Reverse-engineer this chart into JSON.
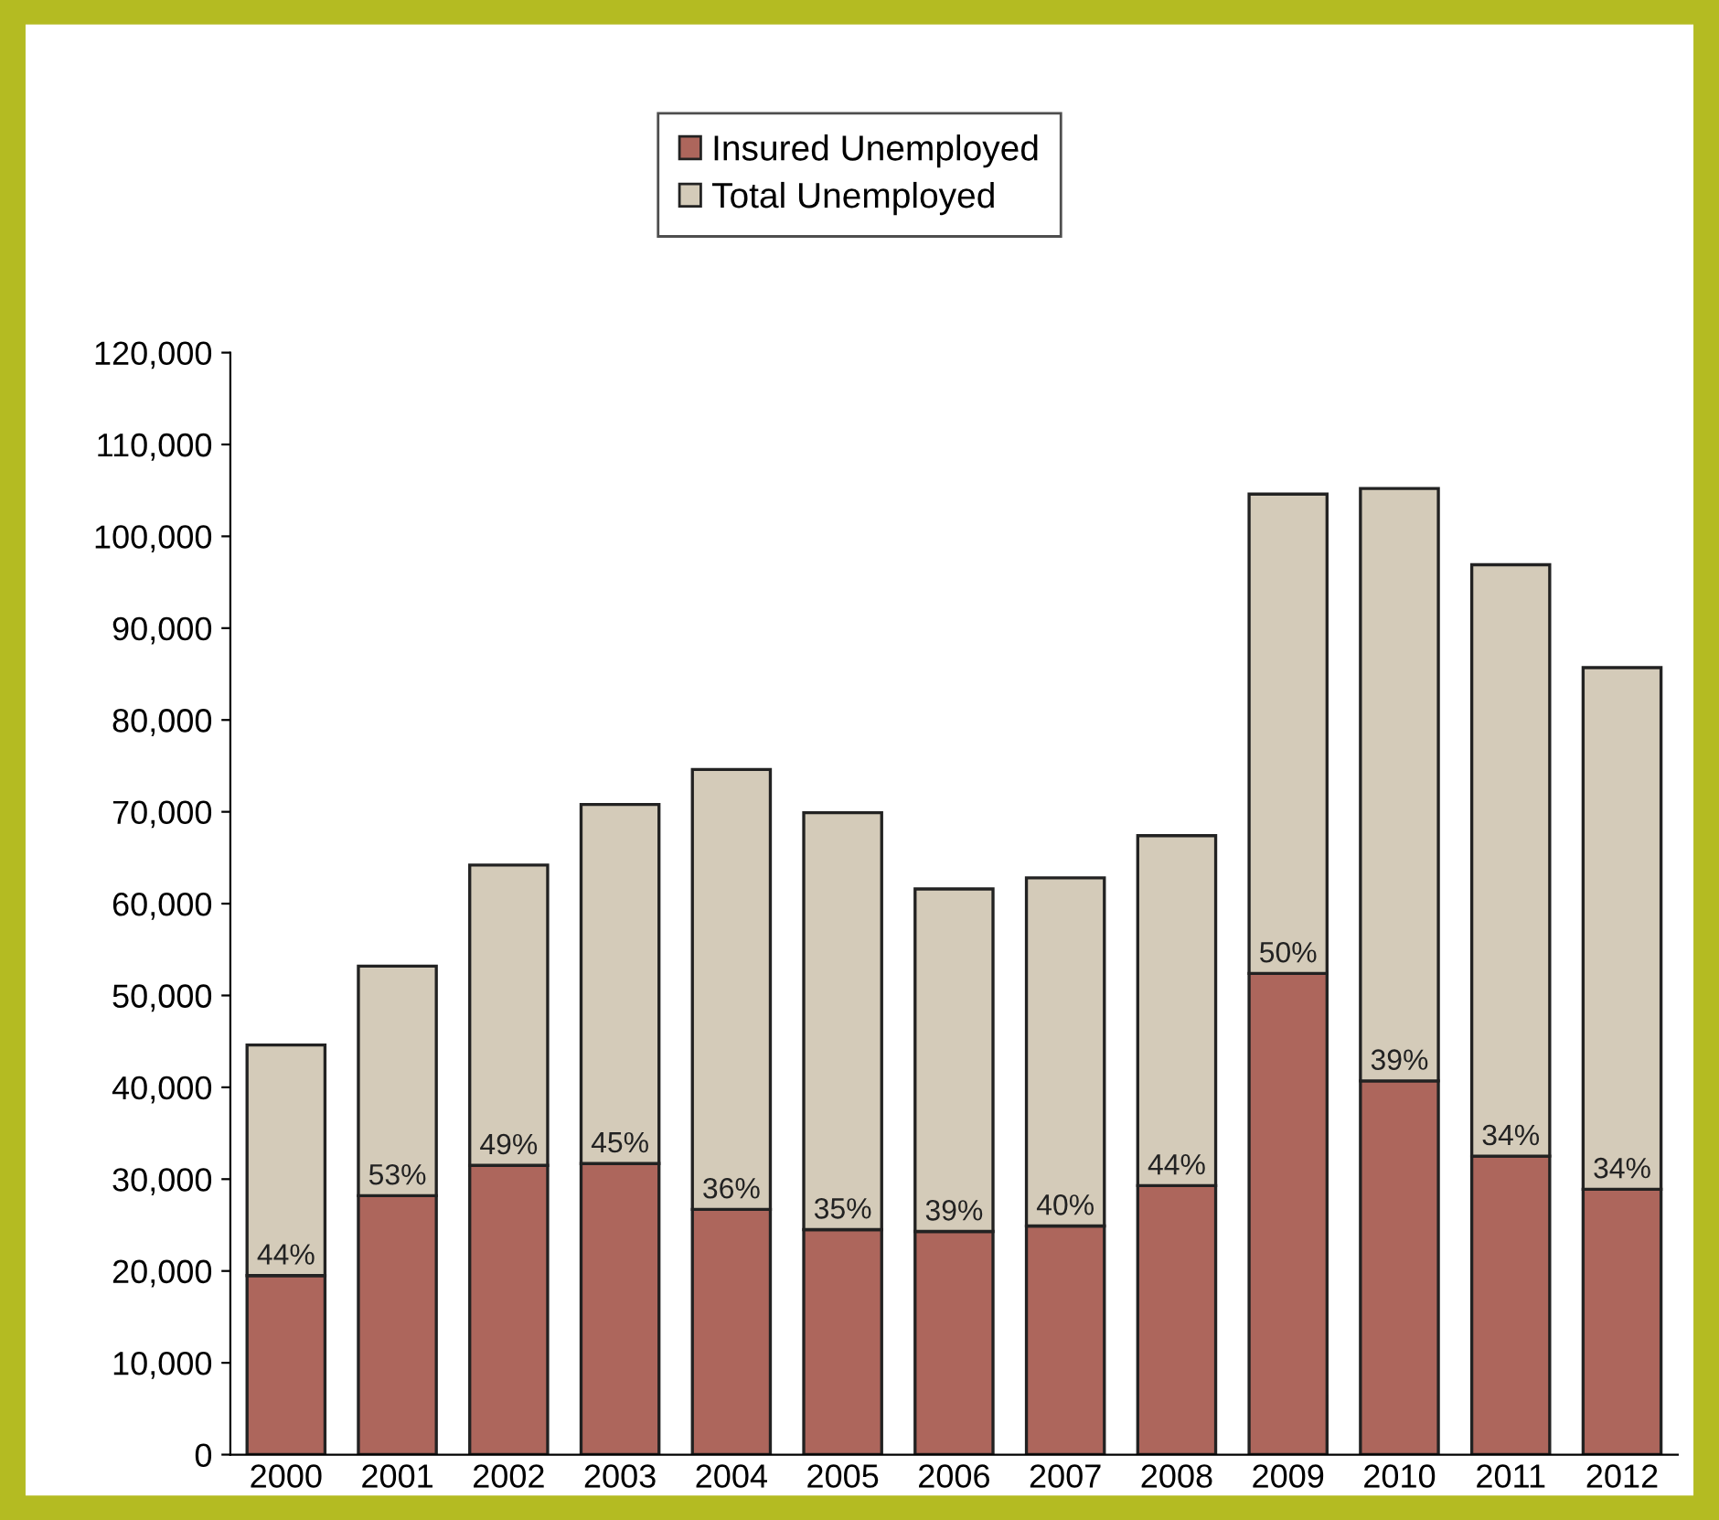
{
  "chart_data": {
    "type": "bar",
    "stacked": true,
    "categories": [
      "2000",
      "2001",
      "2002",
      "2003",
      "2004",
      "2005",
      "2006",
      "2007",
      "2008",
      "2009",
      "2010",
      "2011",
      "2012"
    ],
    "series": [
      {
        "name": "Insured Unemployed",
        "color": "#ad665c",
        "values": [
          19500,
          28200,
          31500,
          31700,
          26700,
          24500,
          24300,
          24900,
          29300,
          52400,
          40700,
          32500,
          28900
        ]
      },
      {
        "name": "Total Unemployed",
        "color": "#d4cbb9",
        "values": [
          25100,
          25000,
          32700,
          39100,
          47900,
          45400,
          37300,
          37900,
          38100,
          52200,
          64500,
          64400,
          56800
        ]
      }
    ],
    "ylim": [
      0,
      120000
    ],
    "yticks": [
      {
        "value": 0,
        "label": "0"
      },
      {
        "value": 10000,
        "label": "10,000"
      },
      {
        "value": 20000,
        "label": "20,000"
      },
      {
        "value": 30000,
        "label": "30,000"
      },
      {
        "value": 40000,
        "label": "40,000"
      },
      {
        "value": 50000,
        "label": "50,000"
      },
      {
        "value": 60000,
        "label": "60,000"
      },
      {
        "value": 70000,
        "label": "70,000"
      },
      {
        "value": 80000,
        "label": "80,000"
      },
      {
        "value": 90000,
        "label": "90,000"
      },
      {
        "value": 100000,
        "label": "100,000"
      },
      {
        "value": 110000,
        "label": "110,000"
      },
      {
        "value": 120000,
        "label": "120,000"
      }
    ],
    "annotations": [
      {
        "text": "44%",
        "x": "2000",
        "y": 19500
      },
      {
        "text": "53%",
        "x": "2001",
        "y": 28200
      },
      {
        "text": "49%",
        "x": "2002",
        "y": 31500
      },
      {
        "text": "45%",
        "x": "2003",
        "y": 31700
      },
      {
        "text": "36%",
        "x": "2004",
        "y": 26700
      },
      {
        "text": "35%",
        "x": "2005",
        "y": 24500
      },
      {
        "text": "39%",
        "x": "2006",
        "y": 24300
      },
      {
        "text": "40%",
        "x": "2007",
        "y": 24900
      },
      {
        "text": "44%",
        "x": "2008",
        "y": 29300
      },
      {
        "text": "50%",
        "x": "2009",
        "y": 52400
      },
      {
        "text": "39%",
        "x": "2010",
        "y": 40700
      },
      {
        "text": "34%",
        "x": "2011",
        "y": 32500
      },
      {
        "text": "34%",
        "x": "2012",
        "y": 28900
      }
    ],
    "grid": false,
    "legend": "top"
  }
}
